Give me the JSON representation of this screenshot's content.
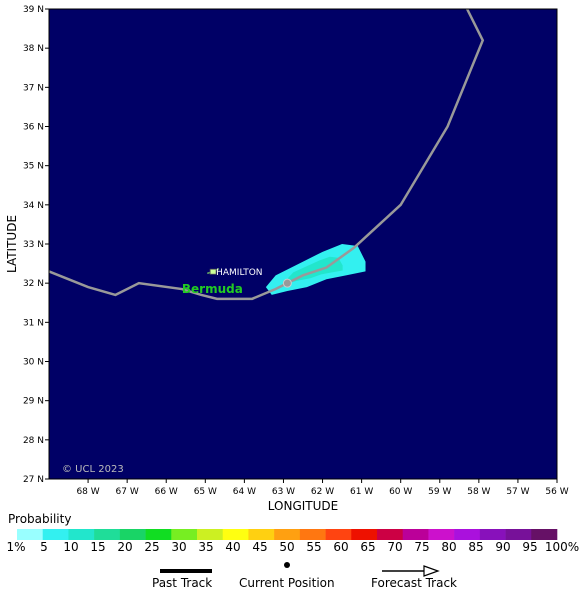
{
  "map": {
    "axes": {
      "xlabel": "LONGITUDE",
      "ylabel": "LATITUDE",
      "x_ticks": [
        "68 W",
        "67 W",
        "66 W",
        "65 W",
        "64 W",
        "63 W",
        "62 W",
        "61 W",
        "60 W",
        "59 W",
        "58 W",
        "57 W",
        "56 W"
      ],
      "y_ticks": [
        "39 N",
        "38 N",
        "37 N",
        "36 N",
        "35 N",
        "34 N",
        "33 N",
        "32 N",
        "31 N",
        "30 N",
        "29 N",
        "28 N",
        "27 N"
      ],
      "lon_range": [
        -69,
        -56
      ],
      "lat_range": [
        27,
        39
      ]
    },
    "background_color": "#000066",
    "place_label": "HAMILTON",
    "island_label": "Bermuda",
    "copyright": "© UCL 2023",
    "track": [
      [
        -69.0,
        32.3
      ],
      [
        -68.0,
        31.9
      ],
      [
        -67.3,
        31.7
      ],
      [
        -66.7,
        32.0
      ],
      [
        -65.6,
        31.85
      ],
      [
        -65.1,
        31.7
      ],
      [
        -64.7,
        31.6
      ],
      [
        -63.8,
        31.6
      ],
      [
        -63.2,
        31.85
      ],
      [
        -62.9,
        32.0
      ],
      [
        -62.5,
        32.2
      ],
      [
        -61.9,
        32.4
      ],
      [
        -61.2,
        32.9
      ],
      [
        -60.0,
        34.0
      ],
      [
        -58.8,
        36.0
      ],
      [
        -57.9,
        38.2
      ],
      [
        -58.3,
        39.0
      ]
    ],
    "current_position": [
      -62.9,
      32.0
    ],
    "probability_swath": [
      [
        -63.3,
        31.7
      ],
      [
        -62.9,
        31.8
      ],
      [
        -62.4,
        31.9
      ],
      [
        -61.9,
        32.1
      ],
      [
        -61.4,
        32.2
      ],
      [
        -60.9,
        32.3
      ],
      [
        -60.9,
        32.55
      ],
      [
        -61.1,
        32.95
      ],
      [
        -61.5,
        33.0
      ],
      [
        -62.0,
        32.8
      ],
      [
        -62.6,
        32.5
      ],
      [
        -63.2,
        32.2
      ],
      [
        -63.45,
        31.9
      ]
    ]
  },
  "legend": {
    "title": "Probability",
    "labels": [
      "1%",
      "5",
      "10",
      "15",
      "20",
      "25",
      "30",
      "35",
      "40",
      "45",
      "50",
      "55",
      "60",
      "65",
      "70",
      "75",
      "80",
      "85",
      "90",
      "95",
      "100%"
    ],
    "colors": [
      "#99ffff",
      "#33f0f0",
      "#22e6cc",
      "#1fdd99",
      "#19d466",
      "#11dd22",
      "#77ee22",
      "#ccf022",
      "#ffff11",
      "#ffd011",
      "#ffa011",
      "#ff7711",
      "#ff4411",
      "#ee1100",
      "#cc0044",
      "#bb0099",
      "#cc11cc",
      "#aa11dd",
      "#8811bb",
      "#771199",
      "#661166"
    ]
  },
  "key": {
    "past_track": "Past Track",
    "current_position": "Current Position",
    "forecast_track": "Forecast Track"
  }
}
